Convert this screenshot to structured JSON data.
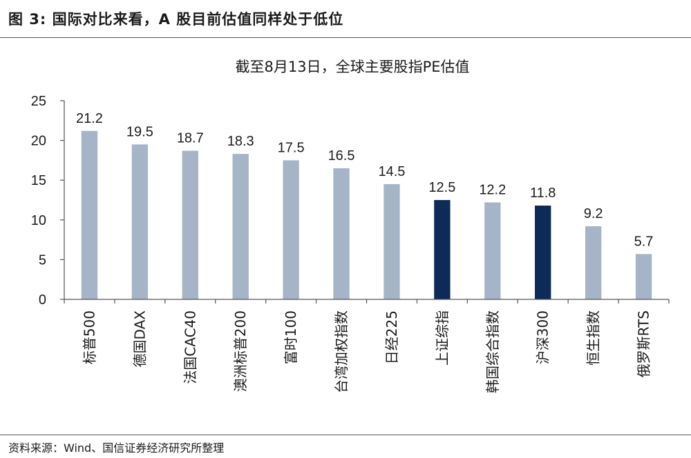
{
  "figure_title": "图 3: 国际对比来看，A 股目前估值同样处于低位",
  "source_note": "资料来源：Wind、国信证券经济研究所整理",
  "colors": {
    "default_bar": "#a5b4c6",
    "highlight_bar": "#0e2a56",
    "axis": "#555555"
  },
  "chart_data": {
    "type": "bar",
    "title": "截至8月13日，全球主要股指PE估值",
    "xlabel": "",
    "ylabel": "",
    "ylim": [
      0,
      25
    ],
    "yticks": [
      0,
      5,
      10,
      15,
      20,
      25
    ],
    "grid": false,
    "categories": [
      "标普500",
      "德国DAX",
      "法国CAC40",
      "澳洲标普200",
      "富时100",
      "台湾加权指数",
      "日经225",
      "上证综指",
      "韩国综合指数",
      "沪深300",
      "恒生指数",
      "俄罗斯RTS"
    ],
    "values": [
      21.2,
      19.5,
      18.7,
      18.3,
      17.5,
      16.5,
      14.5,
      12.5,
      12.2,
      11.8,
      9.2,
      5.7
    ],
    "value_labels": [
      "21.2",
      "19.5",
      "18.7",
      "18.3",
      "17.5",
      "16.5",
      "14.5",
      "12.5",
      "12.2",
      "11.8",
      "9.2",
      "5.7"
    ],
    "highlighted": [
      "上证综指",
      "沪深300"
    ]
  }
}
